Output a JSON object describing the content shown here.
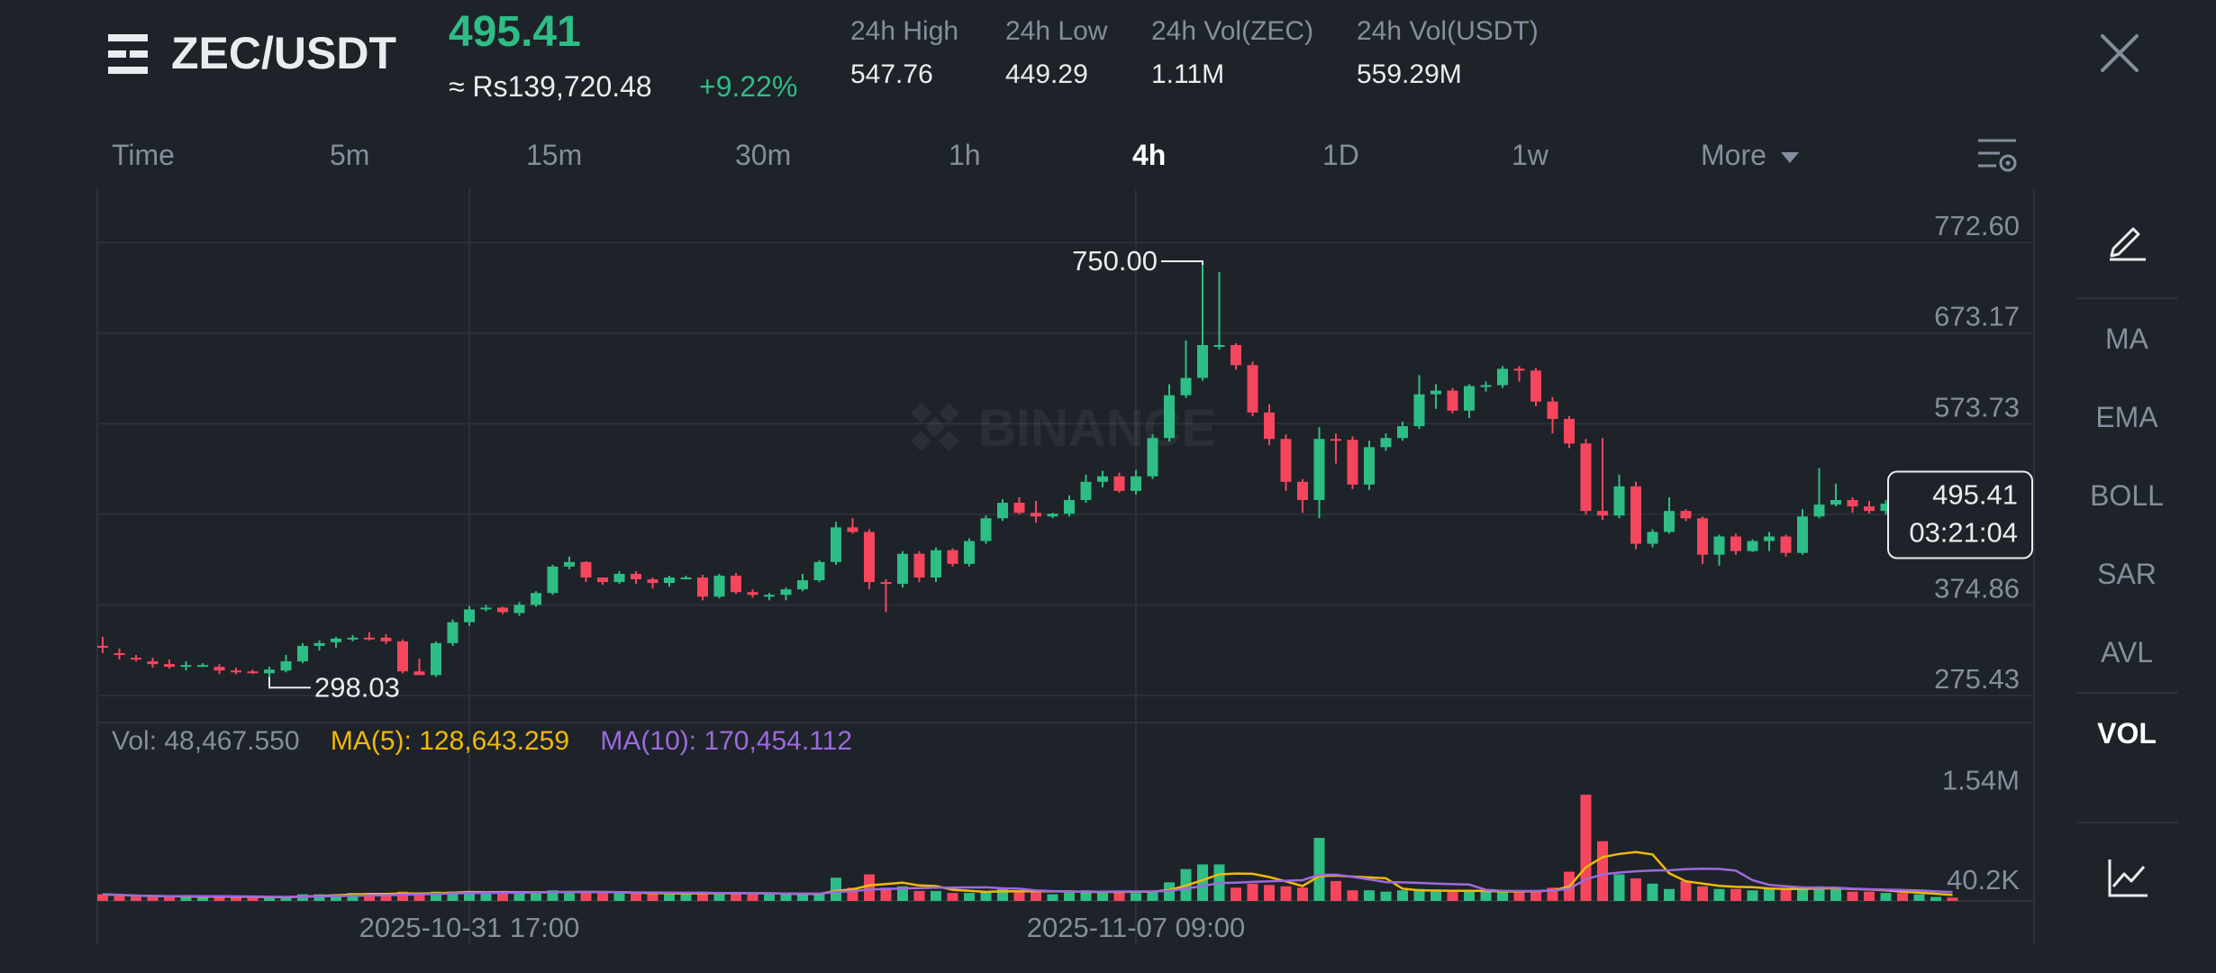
{
  "header": {
    "pair": "ZEC/USDT",
    "last_price": "495.41",
    "fiat_price": "≈ Rs139,720.48",
    "change_pct": "+9.22%",
    "stats": [
      {
        "label": "24h High",
        "value": "547.76"
      },
      {
        "label": "24h Low",
        "value": "449.29"
      },
      {
        "label": "24h Vol(ZEC)",
        "value": "1.11M"
      },
      {
        "label": "24h Vol(USDT)",
        "value": "559.29M"
      }
    ]
  },
  "timeframes": [
    "Time",
    "5m",
    "15m",
    "30m",
    "1h",
    "4h",
    "1D",
    "1w",
    "More"
  ],
  "active_timeframe": "4h",
  "sidebar": {
    "items": [
      "MA",
      "EMA",
      "BOLL",
      "SAR",
      "AVL",
      "VOL"
    ],
    "active": "VOL"
  },
  "icons": {
    "menu": "list-menu-icon",
    "close": "close-icon",
    "dropdown": "caret-down-icon",
    "settings": "chart-settings-icon",
    "draw": "pencil-icon",
    "indicator": "line-chart-icon",
    "watermark": "binance-logo"
  },
  "watermark": "BINANCE",
  "volume_legend": {
    "vol": "Vol: 48,467.550",
    "ma5": "MA(5): 128,643.259",
    "ma10": "MA(10): 170,454.112"
  },
  "colors": {
    "up": "#2ebd85",
    "down": "#f6465d",
    "ma5": "#f0b90b",
    "ma10": "#9c6ade",
    "background": "#1e2329",
    "grid": "#2b3139",
    "muted": "#848e9c"
  },
  "chart_data": [
    {
      "type": "candlestick",
      "title": "ZEC/USDT 4h",
      "y_ticks": [
        "772.60",
        "673.17",
        "573.73",
        "374.86",
        "275.43"
      ],
      "ylim": [
        245.9,
        831.0
      ],
      "x_ticks": [
        {
          "label": "2025-10-31 17:00",
          "index": 22
        },
        {
          "label": "2025-11-07 09:00",
          "index": 62
        }
      ],
      "annotations": {
        "high": "750.00",
        "low": "298.03"
      },
      "current_price": "495.41",
      "countdown": "03:21:04",
      "candles": [
        [
          330,
          328,
          340,
          322
        ],
        [
          322,
          320,
          327,
          315
        ],
        [
          317,
          315,
          320,
          313
        ],
        [
          313,
          310,
          317,
          306
        ],
        [
          310,
          307,
          315,
          305
        ],
        [
          307,
          309,
          313,
          303
        ],
        [
          309,
          309,
          311,
          307
        ],
        [
          307,
          303,
          310,
          299
        ],
        [
          303,
          301,
          306,
          299
        ],
        [
          302,
          301,
          304,
          299
        ],
        [
          300,
          304,
          307,
          296
        ],
        [
          303,
          313,
          320,
          301
        ],
        [
          313,
          330,
          333,
          311
        ],
        [
          330,
          333,
          336,
          325
        ],
        [
          334,
          338,
          340,
          328
        ],
        [
          338,
          339,
          342,
          335
        ],
        [
          339,
          338,
          345,
          336
        ],
        [
          339,
          335,
          343,
          332
        ],
        [
          335,
          302,
          337,
          300
        ],
        [
          302,
          298,
          316,
          298
        ],
        [
          298,
          333,
          335,
          296
        ],
        [
          333,
          356,
          359,
          330
        ],
        [
          356,
          370,
          374,
          352
        ],
        [
          370,
          372,
          375,
          368
        ],
        [
          372,
          367,
          373,
          365
        ],
        [
          366,
          375,
          378,
          363
        ],
        [
          375,
          388,
          390,
          373
        ],
        [
          388,
          417,
          419,
          386
        ],
        [
          417,
          422,
          428,
          414
        ],
        [
          422,
          405,
          423,
          400
        ],
        [
          405,
          400,
          403,
          397
        ],
        [
          400,
          409,
          412,
          398
        ],
        [
          409,
          403,
          412,
          398
        ],
        [
          403,
          399,
          405,
          393
        ],
        [
          399,
          405,
          407,
          395
        ],
        [
          405,
          405,
          407,
          403
        ],
        [
          405,
          384,
          408,
          380
        ],
        [
          384,
          407,
          409,
          382
        ],
        [
          407,
          389,
          410,
          387
        ],
        [
          389,
          386,
          392,
          383
        ],
        [
          386,
          386,
          388,
          380
        ],
        [
          386,
          392,
          394,
          380
        ],
        [
          392,
          402,
          409,
          390
        ],
        [
          402,
          422,
          424,
          400
        ],
        [
          422,
          460,
          466,
          419
        ],
        [
          460,
          455,
          470,
          453
        ],
        [
          455,
          400,
          458,
          392
        ],
        [
          400,
          398,
          403,
          367
        ],
        [
          398,
          431,
          434,
          394
        ],
        [
          431,
          405,
          434,
          400
        ],
        [
          405,
          435,
          438,
          400
        ],
        [
          435,
          420,
          437,
          417
        ],
        [
          420,
          445,
          448,
          417
        ],
        [
          445,
          470,
          473,
          442
        ],
        [
          470,
          487,
          491,
          467
        ],
        [
          487,
          476,
          493,
          474
        ],
        [
          476,
          472,
          489,
          465
        ],
        [
          472,
          475,
          476,
          470
        ],
        [
          475,
          490,
          495,
          472
        ],
        [
          490,
          510,
          518,
          487
        ],
        [
          510,
          516,
          522,
          504
        ],
        [
          516,
          500,
          520,
          498
        ],
        [
          500,
          516,
          523,
          496
        ],
        [
          516,
          558,
          562,
          513
        ],
        [
          558,
          605,
          617,
          554
        ],
        [
          605,
          624,
          665,
          602
        ],
        [
          624,
          660,
          748,
          621
        ],
        [
          660,
          660,
          740,
          655
        ],
        [
          660,
          638,
          662,
          633
        ],
        [
          638,
          586,
          642,
          582
        ],
        [
          586,
          557,
          595,
          550
        ],
        [
          557,
          510,
          562,
          500
        ],
        [
          510,
          490,
          513,
          476
        ],
        [
          490,
          557,
          570,
          470
        ],
        [
          557,
          556,
          563,
          530
        ],
        [
          556,
          507,
          560,
          502
        ],
        [
          507,
          548,
          555,
          501
        ],
        [
          548,
          558,
          563,
          544
        ],
        [
          558,
          571,
          576,
          555
        ],
        [
          571,
          606,
          627,
          568
        ],
        [
          606,
          610,
          617,
          590
        ],
        [
          610,
          588,
          613,
          585
        ],
        [
          588,
          615,
          617,
          580
        ],
        [
          615,
          616,
          620,
          609
        ],
        [
          616,
          634,
          637,
          613
        ],
        [
          634,
          632,
          637,
          620
        ],
        [
          632,
          598,
          635,
          593
        ],
        [
          598,
          579,
          603,
          563
        ],
        [
          579,
          552,
          582,
          547
        ],
        [
          552,
          478,
          557,
          474
        ],
        [
          478,
          473,
          558,
          468
        ],
        [
          473,
          505,
          518,
          470
        ],
        [
          505,
          442,
          510,
          436
        ],
        [
          442,
          455,
          458,
          438
        ],
        [
          455,
          478,
          493,
          453
        ],
        [
          478,
          470,
          480,
          467
        ],
        [
          470,
          430,
          472,
          420
        ],
        [
          430,
          450,
          452,
          418
        ],
        [
          450,
          434,
          453,
          430
        ],
        [
          434,
          445,
          447,
          433
        ],
        [
          445,
          450,
          455,
          434
        ],
        [
          450,
          432,
          452,
          428
        ],
        [
          432,
          472,
          480,
          430
        ],
        [
          472,
          485,
          525,
          470
        ],
        [
          485,
          490,
          508,
          483
        ],
        [
          490,
          483,
          493,
          476
        ],
        [
          483,
          478,
          489,
          475
        ],
        [
          478,
          486,
          490,
          474
        ],
        [
          486,
          476,
          490,
          471
        ],
        [
          476,
          476,
          483,
          445
        ],
        [
          476,
          478,
          481,
          472
        ],
        [
          478,
          474,
          480,
          470
        ]
      ]
    },
    {
      "type": "bar",
      "title": "Volume",
      "y_ticks": [
        "1.54M",
        "40.2K"
      ],
      "ylim": [
        0,
        1.9
      ],
      "unit": "M",
      "series": [
        {
          "name": "Vol",
          "values": [
            0.1,
            0.08,
            0.06,
            0.06,
            0.06,
            0.08,
            0.06,
            0.07,
            0.05,
            0.05,
            0.06,
            0.06,
            0.1,
            0.1,
            0.1,
            0.12,
            0.1,
            0.1,
            0.14,
            0.1,
            0.14,
            0.14,
            0.15,
            0.12,
            0.12,
            0.12,
            0.14,
            0.16,
            0.14,
            0.12,
            0.12,
            0.12,
            0.12,
            0.12,
            0.1,
            0.1,
            0.14,
            0.12,
            0.12,
            0.1,
            0.1,
            0.1,
            0.1,
            0.12,
            0.35,
            0.2,
            0.4,
            0.2,
            0.22,
            0.15,
            0.15,
            0.12,
            0.12,
            0.14,
            0.2,
            0.14,
            0.14,
            0.1,
            0.14,
            0.16,
            0.14,
            0.14,
            0.12,
            0.14,
            0.28,
            0.48,
            0.55,
            0.55,
            0.2,
            0.26,
            0.24,
            0.22,
            0.2,
            0.95,
            0.3,
            0.16,
            0.16,
            0.14,
            0.16,
            0.18,
            0.14,
            0.14,
            0.14,
            0.15,
            0.14,
            0.14,
            0.16,
            0.2,
            0.44,
            1.6,
            0.9,
            0.4,
            0.34,
            0.26,
            0.18,
            0.3,
            0.22,
            0.18,
            0.18,
            0.16,
            0.2,
            0.18,
            0.18,
            0.22,
            0.18,
            0.14,
            0.14,
            0.12,
            0.12,
            0.1,
            0.06,
            0.05
          ]
        }
      ]
    }
  ]
}
